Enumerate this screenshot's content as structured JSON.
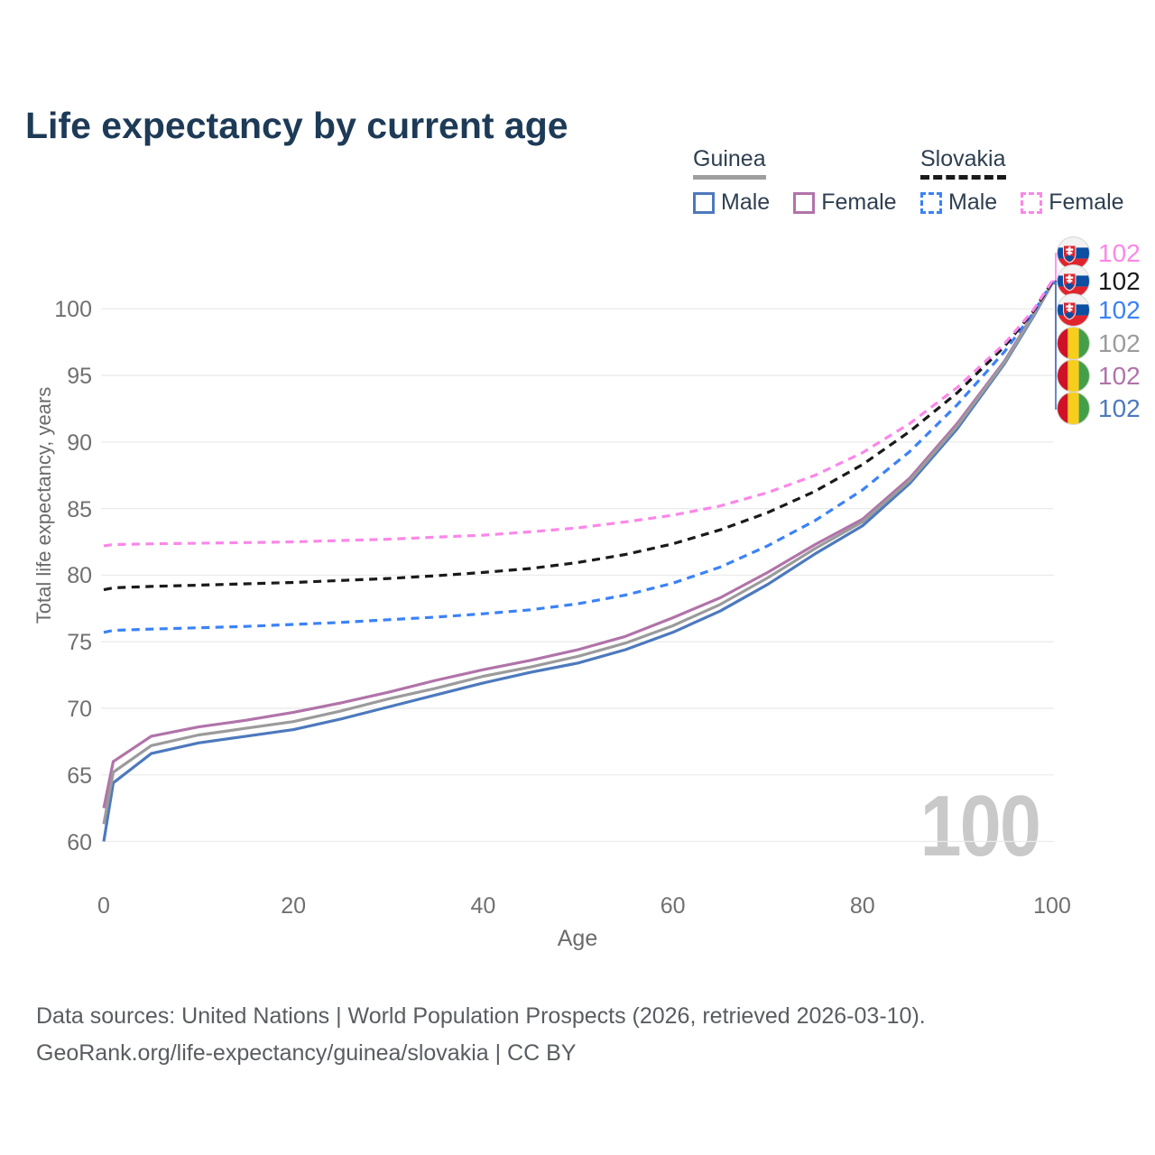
{
  "title": "Life expectancy by current age",
  "watermark": "100",
  "legend": {
    "groups": [
      {
        "country": "Guinea",
        "items": [
          {
            "label": "Male"
          },
          {
            "label": "Female"
          }
        ]
      },
      {
        "country": "Slovakia",
        "items": [
          {
            "label": "Male"
          },
          {
            "label": "Female"
          }
        ]
      }
    ]
  },
  "colors": {
    "title_text": "#1d3a57",
    "legend_text": "#2e3f50",
    "axis_text": "#707070",
    "grid": "#ebebeb",
    "watermark": "#c9c9c9",
    "footer_text": "#595d61",
    "guinea_underline": "#9e9e9e",
    "slovakia_underline": "#1a1a1a"
  },
  "footer": {
    "line1": "Data sources: United Nations | World Population Prospects (2026, retrieved 2026-03-10).",
    "line2": "GeoRank.org/life-expectancy/guinea/slovakia | CC BY"
  },
  "chart_data": {
    "type": "line",
    "title": "Life expectancy by current age",
    "xlabel": "Age",
    "ylabel": "Total life expectancy, years",
    "xlim": [
      0,
      100
    ],
    "ylim": [
      60,
      102.5
    ],
    "xticks": [
      0,
      20,
      40,
      60,
      80,
      100
    ],
    "yticks": [
      60,
      65,
      70,
      75,
      80,
      85,
      90,
      95,
      100
    ],
    "grid": "horizontal",
    "legend_position": "top-right",
    "x": [
      0,
      1,
      5,
      10,
      15,
      20,
      25,
      30,
      35,
      40,
      45,
      50,
      55,
      60,
      65,
      70,
      75,
      80,
      85,
      90,
      95,
      98,
      100
    ],
    "series": [
      {
        "id": "slovakia_female",
        "country": "Slovakia",
        "sex": "Female",
        "style": "dashed",
        "color": "#fb87e8",
        "end_label": "102",
        "values": [
          82.2,
          82.3,
          82.35,
          82.4,
          82.45,
          82.5,
          82.6,
          82.7,
          82.85,
          83.0,
          83.25,
          83.55,
          84.0,
          84.5,
          85.2,
          86.2,
          87.5,
          89.2,
          91.4,
          94.1,
          97.4,
          99.9,
          102.1
        ]
      },
      {
        "id": "slovakia_all",
        "country": "Slovakia",
        "sex": "Both",
        "style": "dashed",
        "color": "#1a1a1a",
        "end_label": "102",
        "values": [
          78.9,
          79.05,
          79.15,
          79.25,
          79.35,
          79.45,
          79.6,
          79.75,
          79.95,
          80.2,
          80.5,
          80.95,
          81.55,
          82.35,
          83.4,
          84.7,
          86.3,
          88.3,
          90.8,
          93.7,
          97.2,
          99.8,
          102.0
        ]
      },
      {
        "id": "slovakia_male",
        "country": "Slovakia",
        "sex": "Male",
        "style": "dashed",
        "color": "#3b82f6",
        "end_label": "102",
        "values": [
          75.7,
          75.85,
          75.95,
          76.05,
          76.15,
          76.3,
          76.45,
          76.65,
          76.85,
          77.1,
          77.4,
          77.85,
          78.5,
          79.4,
          80.6,
          82.2,
          84.1,
          86.4,
          89.3,
          92.8,
          96.8,
          99.7,
          102.0
        ]
      },
      {
        "id": "guinea_all",
        "country": "Guinea",
        "sex": "Both",
        "style": "solid",
        "color": "#9b9b9b",
        "end_label": "102",
        "values": [
          61.3,
          65.2,
          67.2,
          68.0,
          68.5,
          69.0,
          69.8,
          70.7,
          71.5,
          72.4,
          73.1,
          73.9,
          74.9,
          76.2,
          77.8,
          79.8,
          82.0,
          84.0,
          87.1,
          91.2,
          96.0,
          99.5,
          101.9
        ]
      },
      {
        "id": "guinea_female",
        "country": "Guinea",
        "sex": "Female",
        "style": "solid",
        "color": "#b173a9",
        "end_label": "102",
        "values": [
          62.5,
          66.0,
          67.9,
          68.6,
          69.1,
          69.7,
          70.4,
          71.2,
          72.1,
          72.9,
          73.6,
          74.4,
          75.4,
          76.8,
          78.3,
          80.2,
          82.3,
          84.2,
          87.3,
          91.4,
          96.1,
          99.6,
          101.9
        ]
      },
      {
        "id": "guinea_male",
        "country": "Guinea",
        "sex": "Male",
        "style": "solid",
        "color": "#4d79bd",
        "end_label": "102",
        "values": [
          60.0,
          64.4,
          66.6,
          67.4,
          67.9,
          68.4,
          69.2,
          70.1,
          71.0,
          71.9,
          72.7,
          73.4,
          74.4,
          75.7,
          77.3,
          79.3,
          81.6,
          83.7,
          86.9,
          91.0,
          95.9,
          99.4,
          101.9
        ]
      }
    ]
  }
}
